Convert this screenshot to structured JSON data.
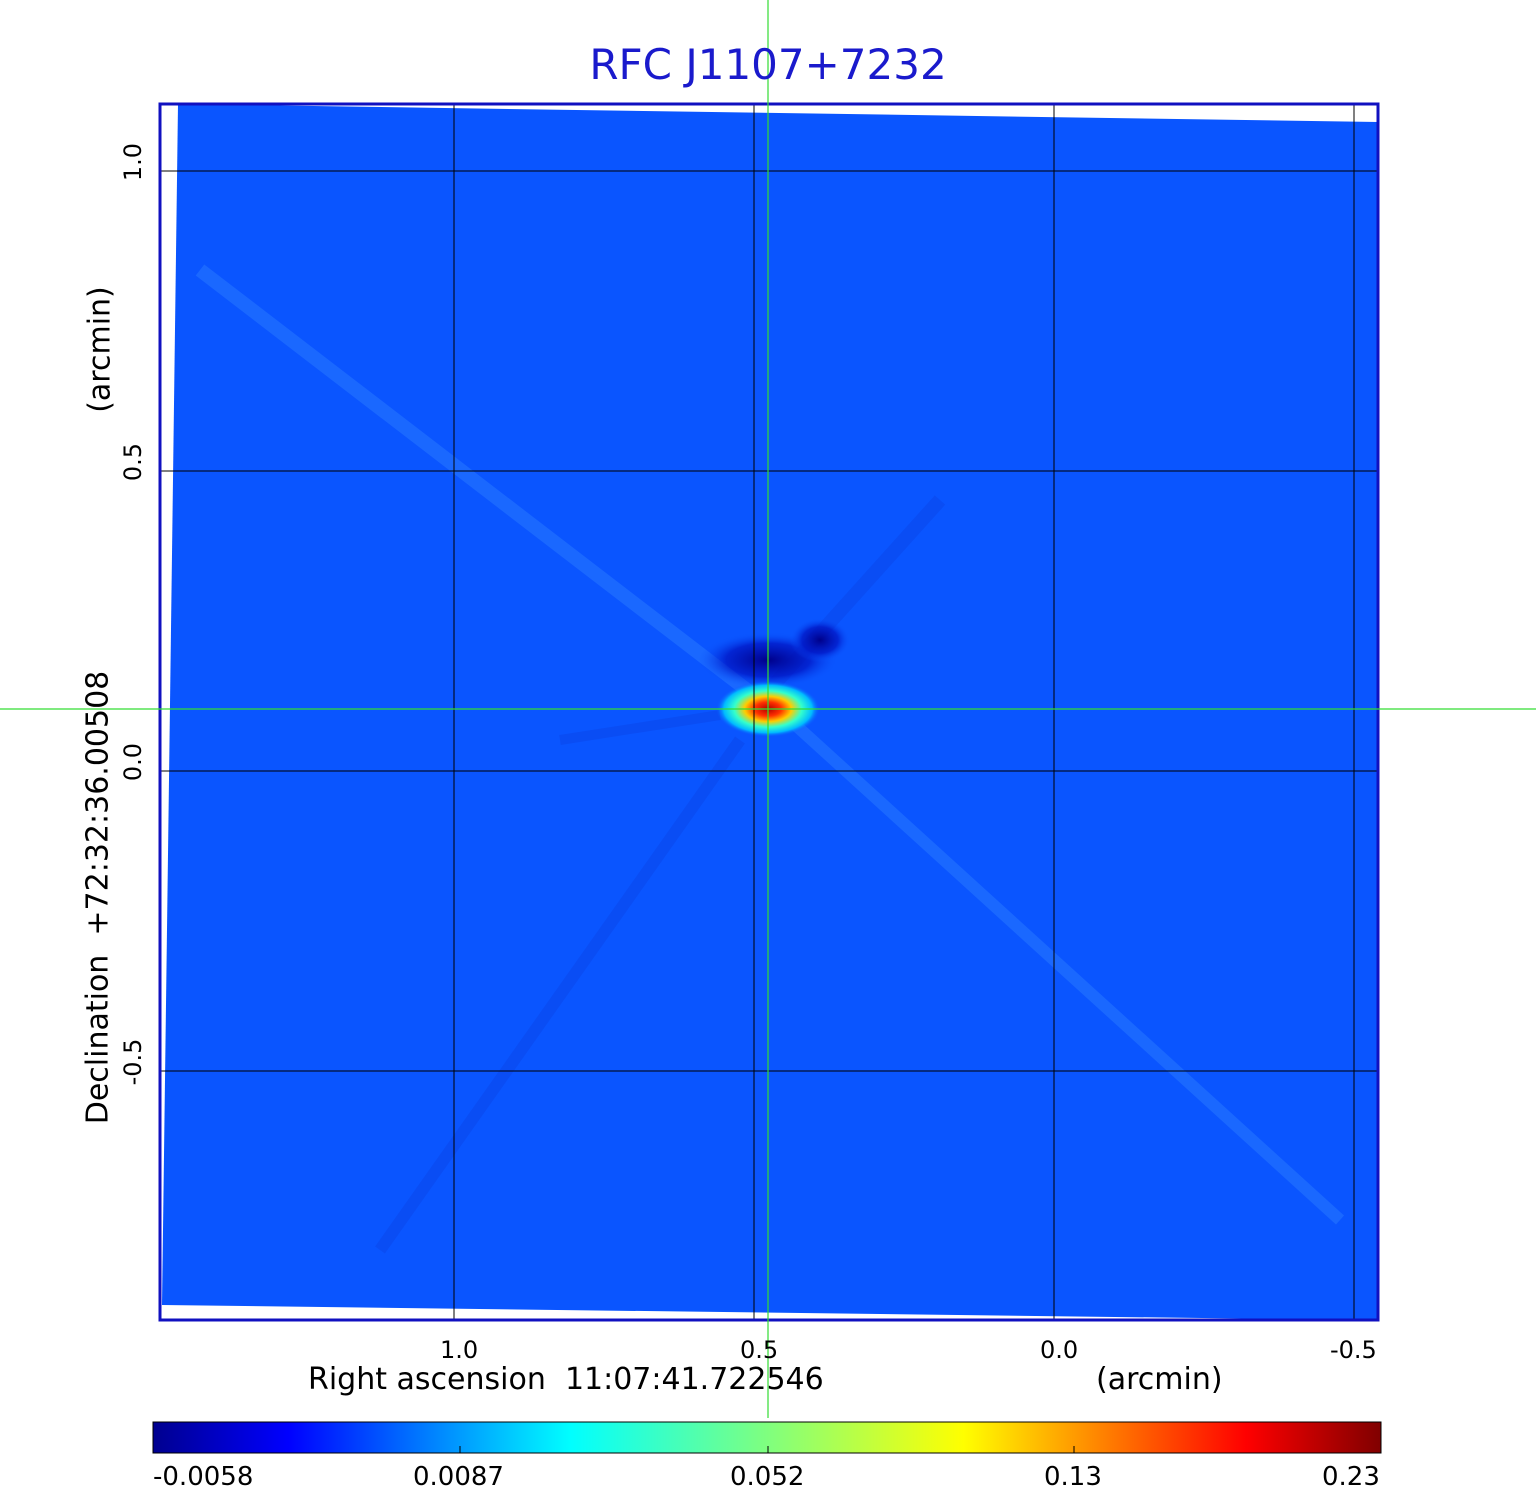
{
  "title": "RFC J1107+7232",
  "x_axis": {
    "label": "Right ascension",
    "center_value": "11:07:41.722546",
    "units": "(arcmin)",
    "ticks": [
      "1.0",
      "0.5",
      "0.0",
      "-0.5"
    ]
  },
  "y_axis": {
    "label": "Declination",
    "center_value": "+72:32:36.00508",
    "units": "(arcmin)",
    "ticks": [
      "1.0",
      "0.5",
      "0.0",
      "-0.5"
    ]
  },
  "colorbar": {
    "ticks": [
      "-0.0058",
      "0.0087",
      "0.052",
      "0.13",
      "0.23"
    ],
    "colormap": "jet"
  },
  "colors": {
    "title": "#1a1acc",
    "frame": "#1010c0",
    "crosshair": "#33dd33",
    "background_field": "#0a55ff"
  }
}
